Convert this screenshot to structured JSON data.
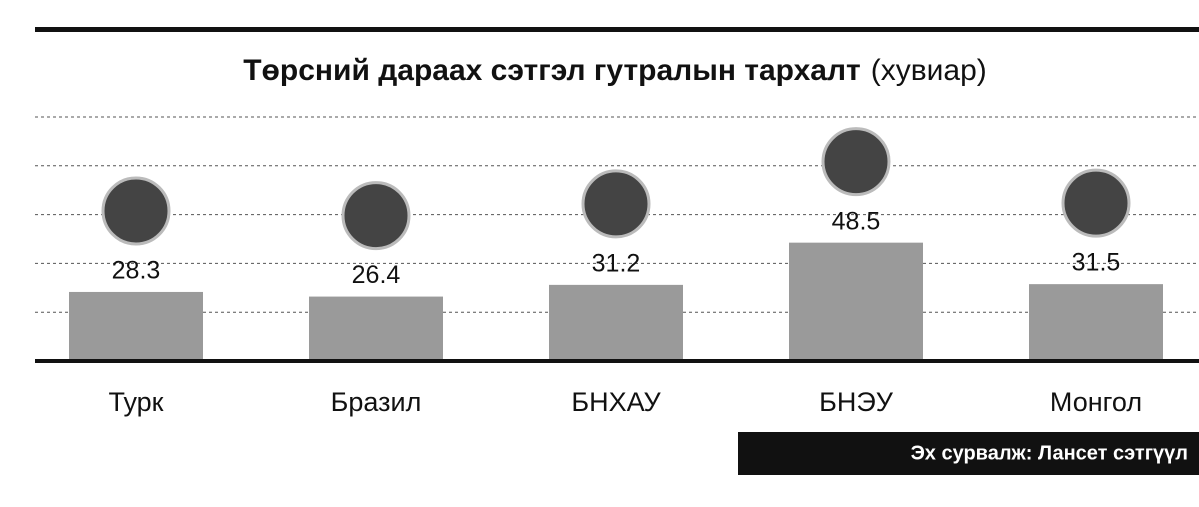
{
  "chart_data": {
    "type": "bar",
    "title": "Төрсний дараах сэтгэл гутралын тархалт",
    "subtitle": "(хувиар)",
    "categories": [
      "Турк",
      "Бразил",
      "БНХАУ",
      "БНЭУ",
      "Монгол"
    ],
    "values": [
      28.3,
      26.4,
      31.2,
      48.5,
      31.5
    ],
    "color": "#9a9a9a",
    "ylim": [
      0,
      100
    ],
    "yticks": [
      20,
      40,
      60,
      80,
      100
    ],
    "grid": true,
    "source": "Эх сурвалж: Лансет сэтгүүл"
  }
}
